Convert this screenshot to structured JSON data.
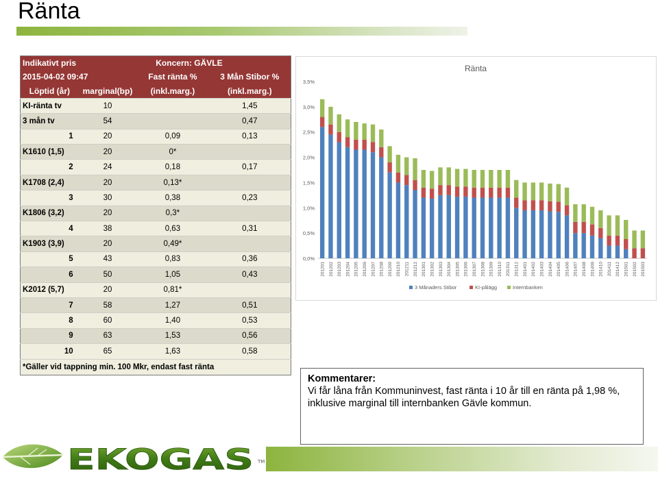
{
  "page": {
    "title": "Ränta"
  },
  "table": {
    "header1": {
      "c1": "Indikativt pris",
      "c3": "Koncern: GÄVLE"
    },
    "header2": {
      "c1": "2015-04-02 09:47",
      "c3": "Fast ränta %",
      "c4": "3 Mån Stibor %"
    },
    "header3": {
      "c1": "Löptid (år)",
      "c2": "marginal(bp)",
      "c3": "(inkl.marg.)",
      "c4": "(inkl.marg.)"
    },
    "rows": [
      {
        "label": "KI-ränta tv",
        "margin": "10",
        "fixed": "",
        "stibor": "1,45",
        "align": "left"
      },
      {
        "label": "3 mån tv",
        "margin": "54",
        "fixed": "",
        "stibor": "0,47",
        "align": "left"
      },
      {
        "label": "1",
        "margin": "20",
        "fixed": "0,09",
        "stibor": "0,13",
        "align": "right"
      },
      {
        "label": "K1610 (1,5)",
        "margin": "20",
        "fixed": "0*",
        "stibor": "",
        "align": "left"
      },
      {
        "label": "2",
        "margin": "24",
        "fixed": "0,18",
        "stibor": "0,17",
        "align": "right"
      },
      {
        "label": "K1708 (2,4)",
        "margin": "20",
        "fixed": "0,13*",
        "stibor": "",
        "align": "left"
      },
      {
        "label": "3",
        "margin": "30",
        "fixed": "0,38",
        "stibor": "0,23",
        "align": "right"
      },
      {
        "label": "K1806 (3,2)",
        "margin": "20",
        "fixed": "0,3*",
        "stibor": "",
        "align": "left"
      },
      {
        "label": "4",
        "margin": "38",
        "fixed": "0,63",
        "stibor": "0,31",
        "align": "right"
      },
      {
        "label": "K1903 (3,9)",
        "margin": "20",
        "fixed": "0,49*",
        "stibor": "",
        "align": "left"
      },
      {
        "label": "5",
        "margin": "43",
        "fixed": "0,83",
        "stibor": "0,36",
        "align": "right"
      },
      {
        "label": "6",
        "margin": "50",
        "fixed": "1,05",
        "stibor": "0,43",
        "align": "right"
      },
      {
        "label": "K2012 (5,7)",
        "margin": "20",
        "fixed": "0,81*",
        "stibor": "",
        "align": "left"
      },
      {
        "label": "7",
        "margin": "58",
        "fixed": "1,27",
        "stibor": "0,51",
        "align": "right"
      },
      {
        "label": "8",
        "margin": "60",
        "fixed": "1,40",
        "stibor": "0,53",
        "align": "right"
      },
      {
        "label": "9",
        "margin": "63",
        "fixed": "1,53",
        "stibor": "0,56",
        "align": "right"
      },
      {
        "label": "10",
        "margin": "65",
        "fixed": "1,63",
        "stibor": "0,58",
        "align": "right"
      }
    ],
    "footnote": "*Gäller vid tappning min. 100 Mkr, endast fast ränta"
  },
  "chart_data": {
    "type": "bar",
    "stacked": true,
    "title": "Ränta",
    "xlabel": "",
    "ylabel": "",
    "ylim": [
      0,
      3.5
    ],
    "y_ticks": [
      "0,0%",
      "0,5%",
      "1,0%",
      "1,5%",
      "2,0%",
      "2,5%",
      "3,0%",
      "3,5%"
    ],
    "grid": false,
    "legend_position": "bottom",
    "categories": [
      "201201",
      "201202",
      "201203",
      "201204",
      "201205",
      "201206",
      "201207",
      "201208",
      "201209",
      "201210",
      "201211",
      "201212",
      "201301",
      "201302",
      "201303",
      "201304",
      "201305",
      "201306",
      "201307",
      "201308",
      "201309",
      "201310",
      "201311",
      "201312",
      "201401",
      "201402",
      "201403",
      "201404",
      "201405",
      "201406",
      "201407",
      "201408",
      "201409",
      "201410",
      "201411",
      "201412",
      "201501",
      "201502",
      "201503"
    ],
    "series": [
      {
        "name": "3 Månaders Stibor",
        "color": "#4f81bd",
        "values": [
          2.6,
          2.45,
          2.3,
          2.2,
          2.15,
          2.15,
          2.1,
          2.0,
          1.7,
          1.5,
          1.45,
          1.35,
          1.2,
          1.18,
          1.25,
          1.25,
          1.22,
          1.22,
          1.2,
          1.2,
          1.2,
          1.2,
          1.2,
          1.0,
          0.95,
          0.95,
          0.95,
          0.93,
          0.92,
          0.85,
          0.5,
          0.5,
          0.45,
          0.4,
          0.25,
          0.25,
          0.18,
          0.0,
          0.0
        ]
      },
      {
        "name": "KI-pålägg",
        "color": "#c0504d",
        "values": [
          0.2,
          0.2,
          0.2,
          0.2,
          0.2,
          0.2,
          0.2,
          0.2,
          0.2,
          0.2,
          0.2,
          0.2,
          0.2,
          0.2,
          0.2,
          0.2,
          0.2,
          0.2,
          0.2,
          0.2,
          0.2,
          0.2,
          0.2,
          0.2,
          0.2,
          0.2,
          0.2,
          0.2,
          0.2,
          0.2,
          0.22,
          0.22,
          0.22,
          0.2,
          0.2,
          0.2,
          0.2,
          0.2,
          0.2
        ]
      },
      {
        "name": "Internbanken",
        "color": "#9bbb59",
        "values": [
          0.35,
          0.35,
          0.35,
          0.35,
          0.35,
          0.32,
          0.35,
          0.35,
          0.32,
          0.35,
          0.35,
          0.43,
          0.35,
          0.35,
          0.35,
          0.35,
          0.35,
          0.35,
          0.35,
          0.35,
          0.35,
          0.35,
          0.35,
          0.35,
          0.35,
          0.35,
          0.35,
          0.35,
          0.35,
          0.35,
          0.35,
          0.35,
          0.35,
          0.35,
          0.4,
          0.4,
          0.38,
          0.35,
          0.35
        ]
      }
    ]
  },
  "comments": {
    "heading": "Kommentarer:",
    "text": "Vi får låna från Kommuninvest, fast ränta i 10 år till en ränta på 1,98 %, inklusive marginal till internbanken Gävle kommun."
  },
  "logo": {
    "text": "EKOGAS",
    "tm": "TM"
  },
  "colors": {
    "table_header": "#953735",
    "row_light": "#efeedf",
    "row_dark": "#dcdaca",
    "accent_green": "#8db43e"
  }
}
